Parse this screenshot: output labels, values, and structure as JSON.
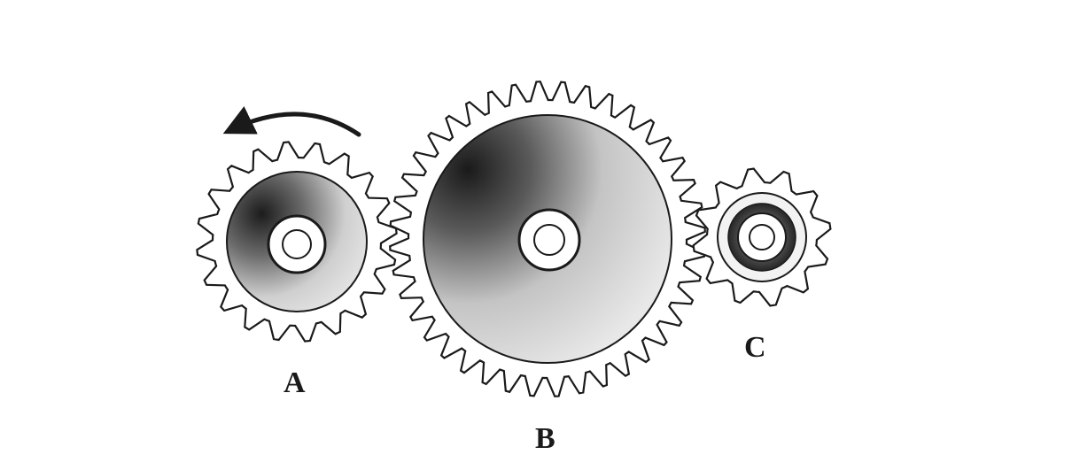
{
  "diagram": {
    "gears": [
      {
        "id": "A",
        "label": "A",
        "teeth": 20,
        "rotation": "counterclockwise-arrow"
      },
      {
        "id": "B",
        "label": "B",
        "teeth": 40
      },
      {
        "id": "C",
        "label": "C",
        "teeth": 12
      }
    ],
    "colors": {
      "ink": "#1a1a1a",
      "paper": "#ffffff",
      "gear_face_light": "#d9d9d9",
      "gear_face_dark": "#2a2a2a"
    }
  }
}
